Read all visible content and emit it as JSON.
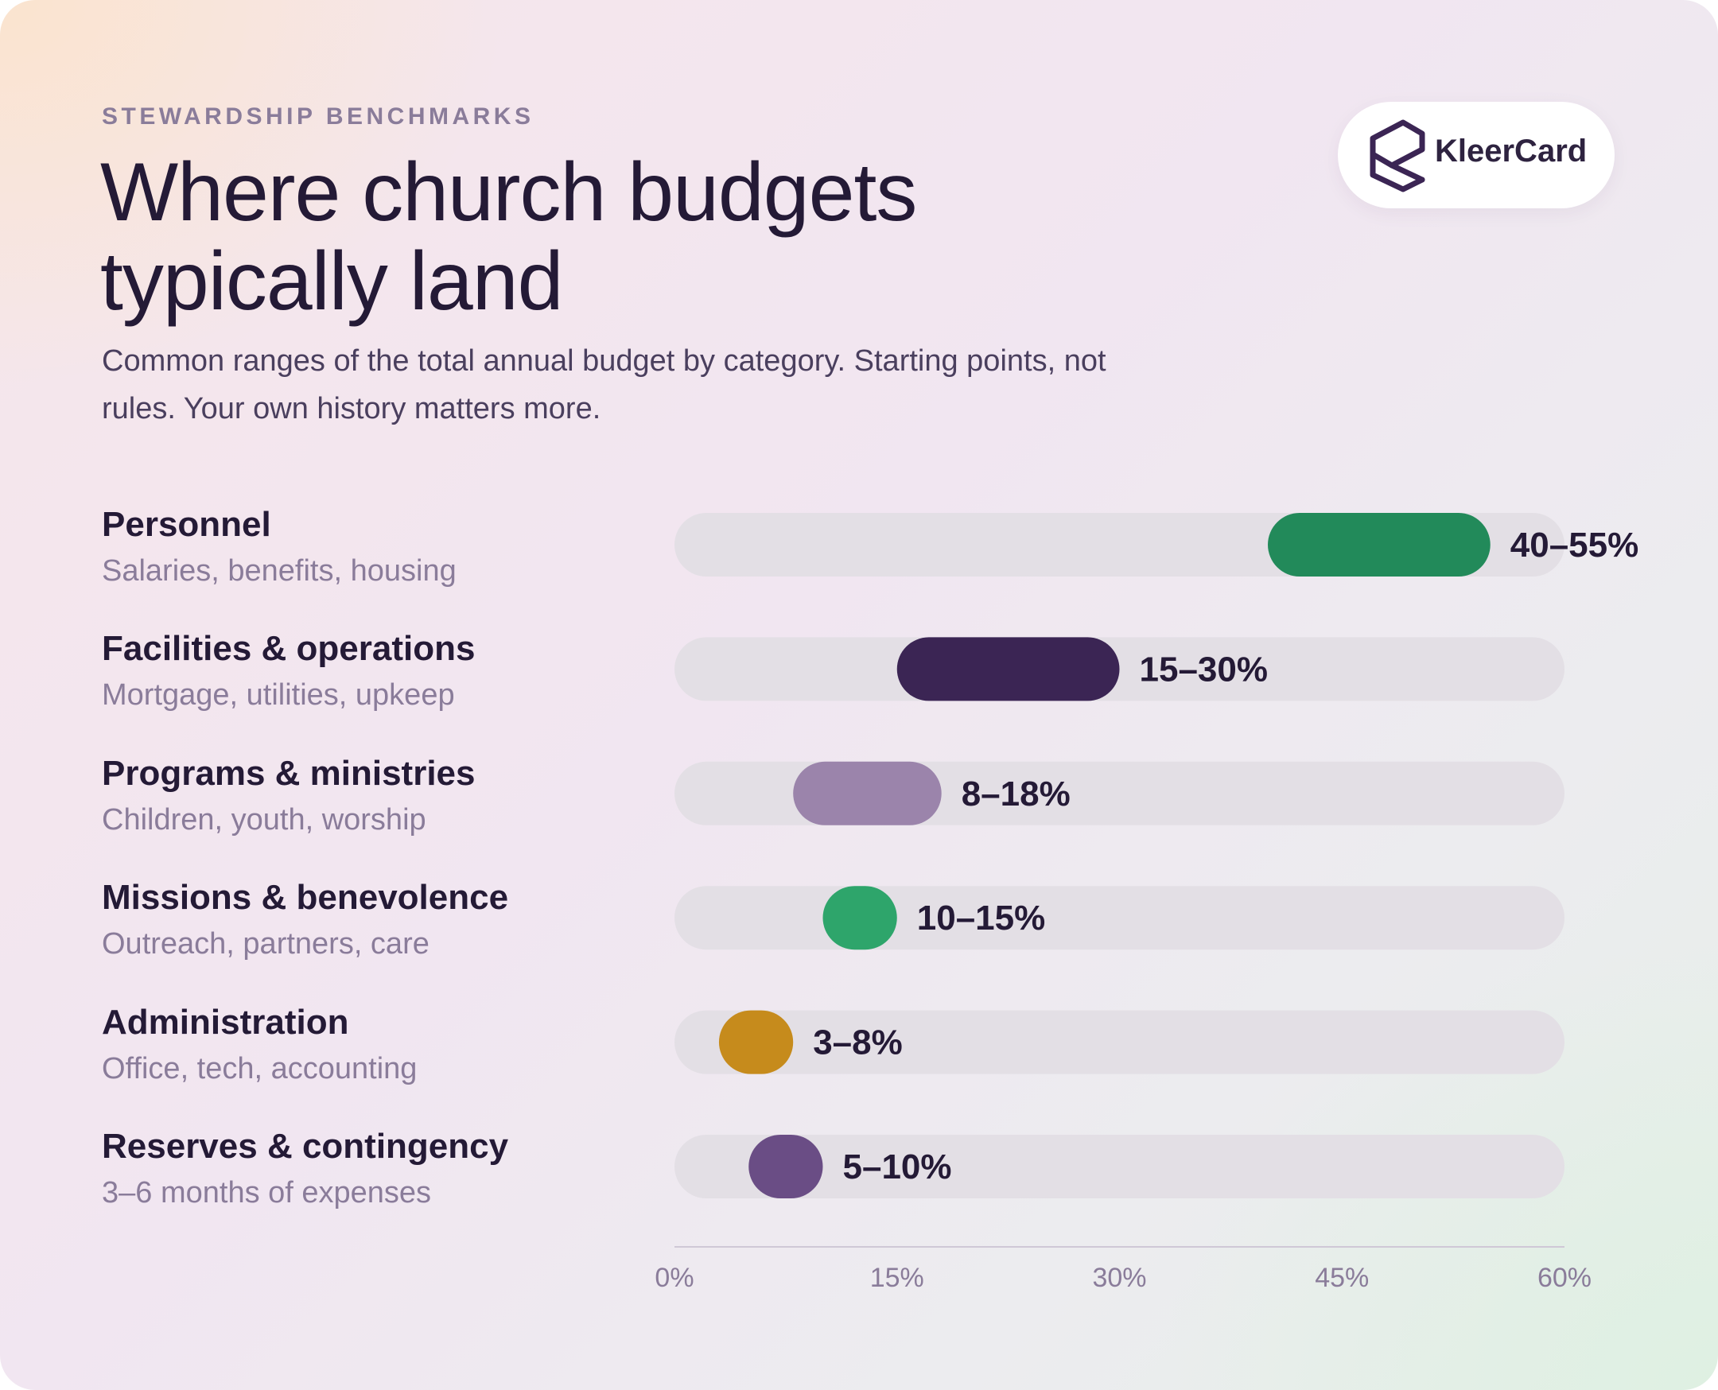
{
  "header": {
    "eyebrow": "STEWARDSHIP BENCHMARKS",
    "title_line1": "Where church budgets",
    "title_line2": "typically land",
    "subtitle_line1": "Common ranges of the total annual budget by category. Starting points, not",
    "subtitle_line2": "rules. Your own history matters more."
  },
  "logo": {
    "text": "KleerCard",
    "icon": "kleercard-logo-icon"
  },
  "colors": {
    "track": "#e3dfe5",
    "axis": "#cfc8d6"
  },
  "chart_data": {
    "type": "bar",
    "orientation": "horizontal-range",
    "xlim": [
      0,
      60
    ],
    "ticks": [
      "0%",
      "15%",
      "30%",
      "45%",
      "60%"
    ],
    "tick_values": [
      0,
      15,
      30,
      45,
      60
    ],
    "grid": false,
    "categories": [
      {
        "label": "Personnel",
        "sublabel": "Salaries, benefits, housing",
        "low": 40,
        "high": 55,
        "value_label": "40–55%",
        "color": "#228a5a"
      },
      {
        "label": "Facilities & operations",
        "sublabel": "Mortgage, utilities, upkeep",
        "low": 15,
        "high": 30,
        "value_label": "15–30%",
        "color": "#3b2554"
      },
      {
        "label": "Programs & ministries",
        "sublabel": "Children, youth, worship",
        "low": 8,
        "high": 18,
        "value_label": "8–18%",
        "color": "#9b84ab"
      },
      {
        "label": "Missions & benevolence",
        "sublabel": "Outreach, partners, care",
        "low": 10,
        "high": 15,
        "value_label": "10–15%",
        "color": "#2ea56b"
      },
      {
        "label": "Administration",
        "sublabel": "Office, tech, accounting",
        "low": 3,
        "high": 8,
        "value_label": "3–8%",
        "color": "#c68b1c"
      },
      {
        "label": "Reserves & contingency",
        "sublabel": "3–6 months of expenses",
        "low": 5,
        "high": 10,
        "value_label": "5–10%",
        "color": "#6a4d85"
      }
    ]
  }
}
